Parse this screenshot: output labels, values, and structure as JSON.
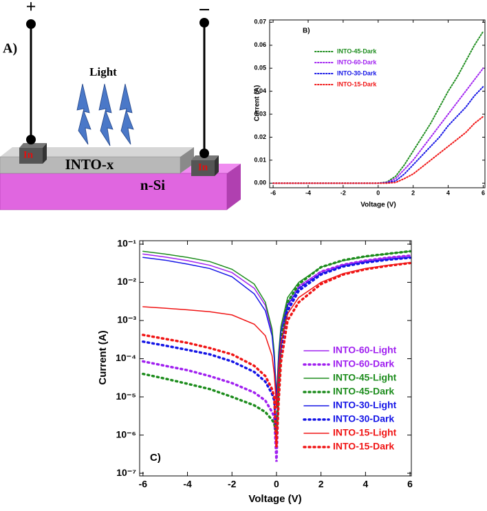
{
  "diagram": {
    "panel_label": "A)",
    "positive": "+",
    "negative": "−",
    "light": "Light",
    "contact_left": "In",
    "contact_right": "In",
    "film": "INTO-x",
    "substrate": "n-Si"
  },
  "chart_data": [
    {
      "type": "line",
      "panel_label": "B)",
      "x_label": "Voltage (V)",
      "y_label": "Current (A)",
      "x": [
        -6,
        -5,
        -4,
        -3,
        -2,
        -1,
        0,
        0.5,
        1,
        1.5,
        2,
        2.5,
        3,
        3.5,
        4,
        4.5,
        5,
        5.5,
        6
      ],
      "xlim": [
        -6.2,
        6.1
      ],
      "xticks": [
        -6,
        -4,
        -2,
        0,
        2,
        4,
        6
      ],
      "ylim": [
        -0.002,
        0.071
      ],
      "yticks": [
        {
          "value": 0,
          "label": "0.00"
        },
        0.01,
        0.02,
        0.03,
        0.04,
        0.05,
        0.06,
        0.07
      ],
      "log_y": false,
      "legend": "upper-left",
      "series": [
        {
          "name": "INTO-45-Dark",
          "color": "#1c8c1c",
          "style": "dotted",
          "values": [
            0,
            0,
            0,
            0,
            0,
            0,
            0,
            0.0005,
            0.003,
            0.008,
            0.014,
            0.02,
            0.026,
            0.033,
            0.04,
            0.046,
            0.053,
            0.06,
            0.066
          ]
        },
        {
          "name": "INTO-60-Dark",
          "color": "#a020f0",
          "style": "dotted",
          "values": [
            0,
            0,
            0,
            0,
            0,
            0,
            0,
            0.0003,
            0.002,
            0.006,
            0.01,
            0.015,
            0.02,
            0.025,
            0.03,
            0.035,
            0.04,
            0.045,
            0.05
          ]
        },
        {
          "name": "INTO-30-Dark",
          "color": "#1414e6",
          "style": "dotted",
          "values": [
            0,
            0,
            0,
            0,
            0,
            0,
            0,
            0.0002,
            0.001,
            0.004,
            0.008,
            0.012,
            0.016,
            0.02,
            0.025,
            0.029,
            0.033,
            0.038,
            0.042
          ]
        },
        {
          "name": "INTO-15-Dark",
          "color": "#f01414",
          "style": "dotted",
          "values": [
            0,
            0,
            0,
            0,
            0,
            0,
            0,
            0,
            0.0003,
            0.002,
            0.004,
            0.007,
            0.01,
            0.013,
            0.016,
            0.019,
            0.022,
            0.026,
            0.029
          ]
        }
      ]
    },
    {
      "type": "line",
      "panel_label": "C)",
      "x_label": "Voltage (V)",
      "y_label": "Current (A)",
      "x": [
        -6,
        -5,
        -4,
        -3,
        -2,
        -1,
        -0.5,
        -0.2,
        -0.1,
        0,
        0.1,
        0.2,
        0.5,
        1,
        2,
        3,
        4,
        5,
        6
      ],
      "xlim": [
        -6.15,
        6.06
      ],
      "xticks": [
        -6,
        -4,
        -2,
        0,
        2,
        4,
        6
      ],
      "ylim": [
        8.5e-08,
        0.123
      ],
      "yticks": [
        {
          "value": 1e-07,
          "label": "10⁻⁷"
        },
        {
          "value": 1e-06,
          "label": "10⁻⁶"
        },
        {
          "value": 1e-05,
          "label": "10⁻⁵"
        },
        {
          "value": 0.0001,
          "label": "10⁻⁴"
        },
        {
          "value": 0.001,
          "label": "10⁻³"
        },
        {
          "value": 0.01,
          "label": "10⁻²"
        },
        {
          "value": 0.1,
          "label": "10⁻¹"
        }
      ],
      "log_y": true,
      "legend": "lower-right",
      "series": [
        {
          "name": "INTO-60-Light",
          "color": "#a020f0",
          "style": "solid",
          "values": [
            0.055,
            0.046,
            0.037,
            0.028,
            0.018,
            0.007,
            0.0025,
            0.0005,
            0.00012,
            1e-05,
            0.00012,
            0.0006,
            0.003,
            0.008,
            0.019,
            0.029,
            0.037,
            0.044,
            0.05
          ]
        },
        {
          "name": "INTO-60-Dark",
          "color": "#a020f0",
          "style": "dotted",
          "values": [
            8.5e-05,
            6.5e-05,
            5e-05,
            3.5e-05,
            2.3e-05,
            1.3e-05,
            8e-06,
            4e-06,
            3e-06,
            2e-07,
            1.5e-05,
            0.0002,
            0.002,
            0.007,
            0.019,
            0.029,
            0.037,
            0.044,
            0.05
          ]
        },
        {
          "name": "INTO-45-Light",
          "color": "#1c8c1c",
          "style": "solid",
          "values": [
            0.065,
            0.055,
            0.045,
            0.035,
            0.022,
            0.009,
            0.003,
            0.0006,
            0.00015,
            1e-05,
            0.00015,
            0.0007,
            0.004,
            0.01,
            0.025,
            0.037,
            0.047,
            0.056,
            0.065
          ]
        },
        {
          "name": "INTO-45-Dark",
          "color": "#1c8c1c",
          "style": "dotted",
          "values": [
            4e-05,
            3e-05,
            2.2e-05,
            1.6e-05,
            1e-05,
            6e-06,
            4e-06,
            2.5e-06,
            2e-06,
            1e-06,
            2e-05,
            0.0003,
            0.003,
            0.009,
            0.025,
            0.038,
            0.048,
            0.056,
            0.065
          ]
        },
        {
          "name": "INTO-30-Light",
          "color": "#1414e6",
          "style": "solid",
          "values": [
            0.045,
            0.038,
            0.03,
            0.023,
            0.014,
            0.005,
            0.0018,
            0.0004,
            0.0001,
            8e-06,
            0.0001,
            0.0005,
            0.0025,
            0.007,
            0.017,
            0.027,
            0.034,
            0.04,
            0.045
          ]
        },
        {
          "name": "INTO-30-Dark",
          "color": "#1414e6",
          "style": "dotted",
          "values": [
            0.00028,
            0.00022,
            0.00017,
            0.00013,
            8.5e-05,
            4.5e-05,
            2.5e-05,
            1.2e-05,
            8e-06,
            1e-06,
            1e-05,
            0.00015,
            0.0018,
            0.006,
            0.016,
            0.026,
            0.033,
            0.039,
            0.044
          ]
        },
        {
          "name": "INTO-15-Light",
          "color": "#f01414",
          "style": "solid",
          "values": [
            0.0023,
            0.0021,
            0.0019,
            0.0017,
            0.0014,
            0.0008,
            0.0004,
            0.00012,
            4e-05,
            5e-06,
            6e-05,
            0.00025,
            0.0015,
            0.004,
            0.01,
            0.017,
            0.023,
            0.028,
            0.033
          ]
        },
        {
          "name": "INTO-15-Dark",
          "color": "#f01414",
          "style": "dotted",
          "values": [
            0.00042,
            0.00033,
            0.00026,
            0.00019,
            0.00013,
            6.5e-05,
            3.5e-05,
            1.6e-05,
            1e-05,
            5e-07,
            8e-06,
            8e-05,
            0.001,
            0.003,
            0.009,
            0.016,
            0.022,
            0.027,
            0.032
          ]
        }
      ]
    }
  ]
}
